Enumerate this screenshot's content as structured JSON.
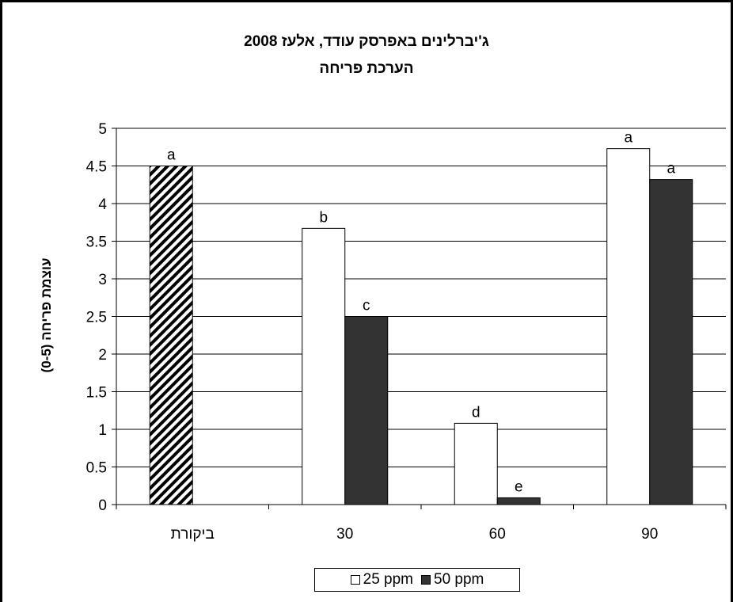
{
  "chart_data": {
    "type": "bar",
    "title": "ג'יברלינים באפרסק עודד, אלעז 2008",
    "subtitle": "הערכת פריחה",
    "ylabel": "עוצמת פריחה (0-5)",
    "xlabel": "",
    "ylim": [
      0,
      5
    ],
    "yticks": [
      "0",
      "0.5",
      "1",
      "1.5",
      "2",
      "2.5",
      "3",
      "3.5",
      "4",
      "4.5",
      "5"
    ],
    "ytick_values": [
      0,
      0.5,
      1,
      1.5,
      2,
      2.5,
      3,
      3.5,
      4,
      4.5,
      5
    ],
    "categories": [
      "ביקורת",
      "30",
      "60",
      "90"
    ],
    "grid": true,
    "legend_position": "bottom-center",
    "control_bar": {
      "category": "ביקורת",
      "value": 4.5,
      "label": "a",
      "pattern": "diagonal-hatch"
    },
    "series": [
      {
        "name": "25 ppm",
        "color": "#ffffff",
        "values": [
          null,
          3.67,
          1.08,
          4.73
        ],
        "labels": [
          "",
          "b",
          "d",
          "a"
        ]
      },
      {
        "name": "50 ppm",
        "color": "#333333",
        "values": [
          null,
          2.5,
          0.09,
          4.32
        ],
        "labels": [
          "",
          "c",
          "e",
          "a"
        ]
      }
    ]
  }
}
